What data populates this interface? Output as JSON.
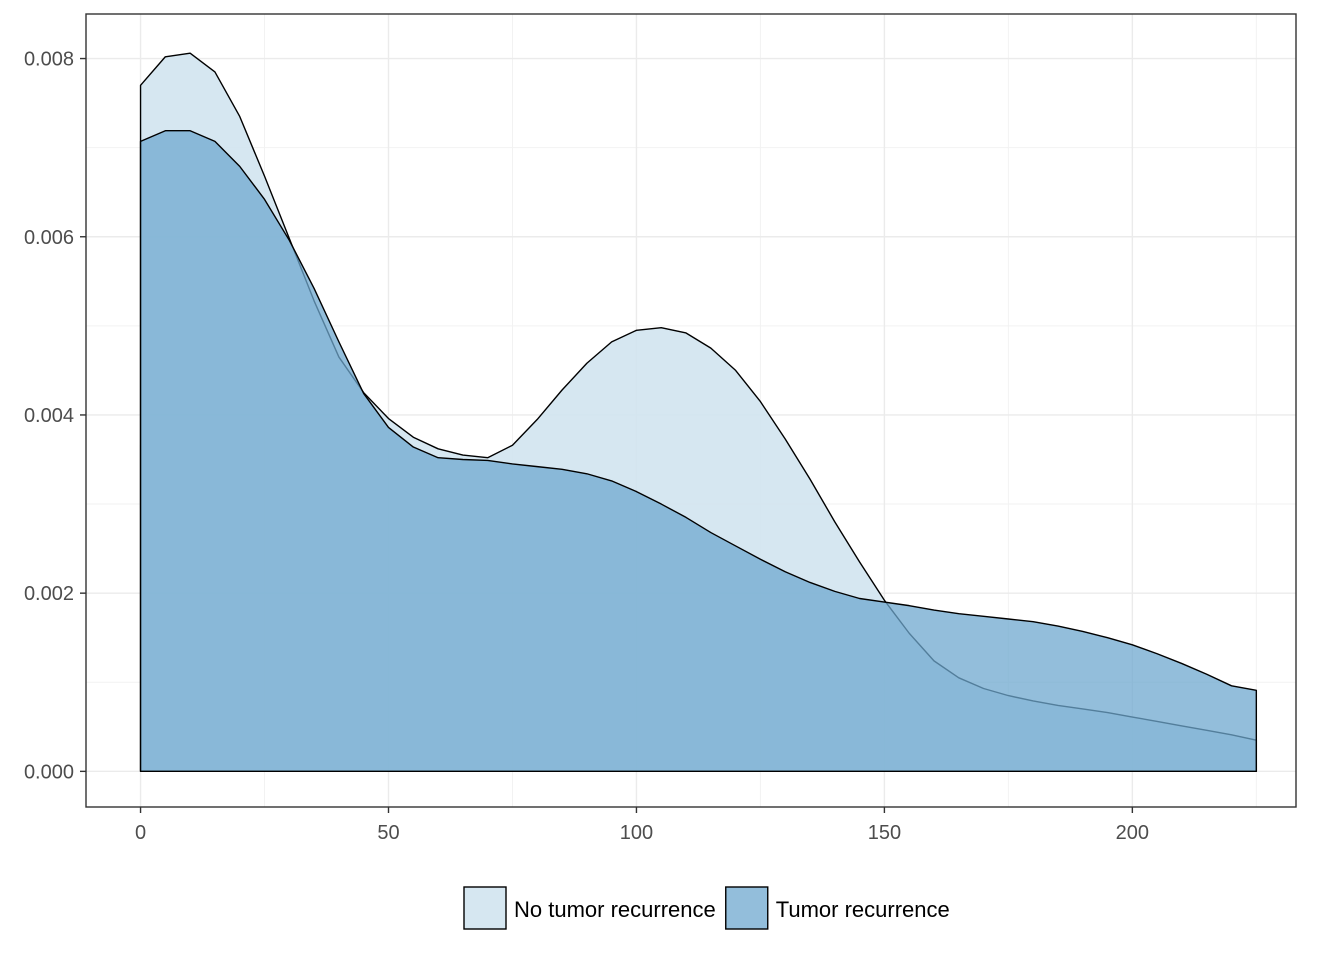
{
  "chart_data": {
    "type": "area",
    "title": "",
    "xlabel": "",
    "ylabel": "",
    "xlim": [
      -11,
      233
    ],
    "ylim": [
      -0.0004,
      0.0085
    ],
    "x_ticks": [
      0,
      50,
      100,
      150,
      200
    ],
    "x_tick_labels": [
      "0",
      "50",
      "100",
      "150",
      "200"
    ],
    "y_ticks": [
      0,
      0.002,
      0.004,
      0.006,
      0.008
    ],
    "y_tick_labels": [
      "0.000",
      "0.002",
      "0.004",
      "0.006",
      "0.008"
    ],
    "grid": true,
    "legend_position": "bottom",
    "x": [
      0,
      5,
      10,
      15,
      20,
      25,
      30,
      35,
      40,
      45,
      50,
      55,
      60,
      65,
      70,
      75,
      80,
      85,
      90,
      95,
      100,
      105,
      110,
      115,
      120,
      125,
      130,
      135,
      140,
      145,
      150,
      155,
      160,
      165,
      170,
      175,
      180,
      185,
      190,
      195,
      200,
      205,
      210,
      215,
      220,
      225
    ],
    "series": [
      {
        "name": "No tumor recurrence",
        "color": "#d2e4f0",
        "values": [
          0.0077,
          0.00802,
          0.00806,
          0.00785,
          0.00735,
          0.00668,
          0.00598,
          0.00528,
          0.00465,
          0.00425,
          0.00396,
          0.00375,
          0.00362,
          0.00355,
          0.00352,
          0.00366,
          0.00395,
          0.00428,
          0.00458,
          0.00482,
          0.00495,
          0.00498,
          0.00492,
          0.00475,
          0.0045,
          0.00415,
          0.00373,
          0.00328,
          0.0028,
          0.00235,
          0.00192,
          0.00155,
          0.00124,
          0.00105,
          0.00093,
          0.00085,
          0.00079,
          0.00074,
          0.0007,
          0.00066,
          0.00061,
          0.00056,
          0.00051,
          0.00046,
          0.00041,
          0.00035
        ]
      },
      {
        "name": "Tumor recurrence",
        "color": "#6fa8cf",
        "values": [
          0.00707,
          0.00719,
          0.00719,
          0.00707,
          0.00679,
          0.00642,
          0.00596,
          0.00542,
          0.00482,
          0.00424,
          0.00386,
          0.00364,
          0.00352,
          0.0035,
          0.00349,
          0.00345,
          0.00342,
          0.00339,
          0.00334,
          0.00326,
          0.00314,
          0.003,
          0.00285,
          0.00268,
          0.00253,
          0.00238,
          0.00224,
          0.00212,
          0.00202,
          0.00194,
          0.0019,
          0.00186,
          0.00181,
          0.00177,
          0.00174,
          0.00171,
          0.00168,
          0.00163,
          0.00157,
          0.0015,
          0.00142,
          0.00132,
          0.00121,
          0.00109,
          0.00096,
          0.00091
        ]
      }
    ]
  }
}
